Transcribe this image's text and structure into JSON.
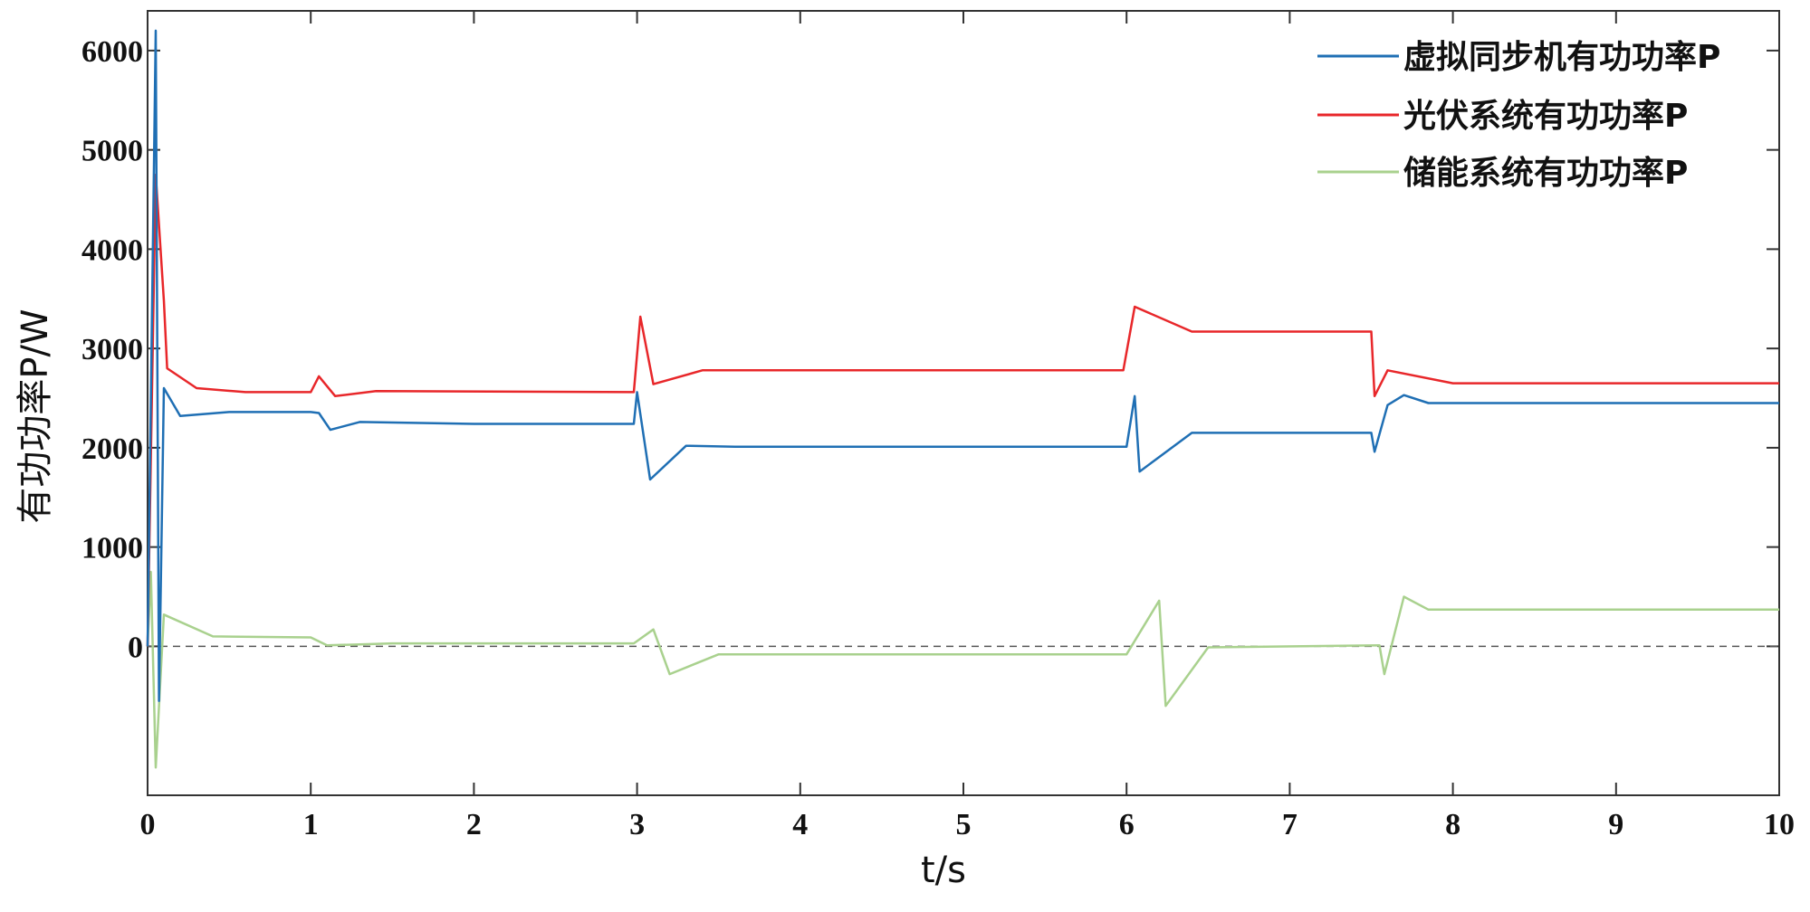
{
  "chart_data": {
    "type": "line",
    "xlabel": "t/s",
    "ylabel": "有功功率P/W",
    "xlim": [
      0,
      10
    ],
    "ylim": [
      -1500,
      6400
    ],
    "x_ticks": [
      "0",
      "1",
      "2",
      "3",
      "4",
      "5",
      "6",
      "7",
      "8",
      "9",
      "10"
    ],
    "y_ticks": [
      "0",
      "1000",
      "2000",
      "3000",
      "4000",
      "5000",
      "6000"
    ],
    "x_tick_values": [
      0,
      1,
      2,
      3,
      4,
      5,
      6,
      7,
      8,
      9,
      10
    ],
    "y_tick_values": [
      0,
      1000,
      2000,
      3000,
      4000,
      5000,
      6000
    ],
    "grid": false,
    "legend_position": "top-right",
    "zero_reference_line": 0,
    "series": [
      {
        "name": "虚拟同步机有功功率P",
        "color": "#1f6fb4",
        "points": [
          [
            0,
            0
          ],
          [
            0.05,
            6200
          ],
          [
            0.07,
            -550
          ],
          [
            0.1,
            2600
          ],
          [
            0.2,
            2320
          ],
          [
            0.5,
            2360
          ],
          [
            1.0,
            2360
          ],
          [
            1.05,
            2350
          ],
          [
            1.12,
            2180
          ],
          [
            1.3,
            2260
          ],
          [
            2.0,
            2240
          ],
          [
            2.98,
            2240
          ],
          [
            3.0,
            2560
          ],
          [
            3.08,
            1680
          ],
          [
            3.3,
            2020
          ],
          [
            3.6,
            2010
          ],
          [
            6.0,
            2010
          ],
          [
            6.05,
            2520
          ],
          [
            6.08,
            1760
          ],
          [
            6.4,
            2150
          ],
          [
            7.5,
            2150
          ],
          [
            7.52,
            1960
          ],
          [
            7.6,
            2430
          ],
          [
            7.7,
            2530
          ],
          [
            7.85,
            2450
          ],
          [
            10,
            2450
          ]
        ]
      },
      {
        "name": "光伏系统有功功率P",
        "color": "#e8272a",
        "points": [
          [
            0,
            0
          ],
          [
            0.05,
            4750
          ],
          [
            0.1,
            3480
          ],
          [
            0.12,
            2800
          ],
          [
            0.3,
            2600
          ],
          [
            0.6,
            2560
          ],
          [
            1.0,
            2560
          ],
          [
            1.05,
            2720
          ],
          [
            1.15,
            2520
          ],
          [
            1.4,
            2570
          ],
          [
            2.98,
            2560
          ],
          [
            3.02,
            3320
          ],
          [
            3.1,
            2640
          ],
          [
            3.4,
            2780
          ],
          [
            5.98,
            2780
          ],
          [
            6.05,
            3420
          ],
          [
            6.4,
            3170
          ],
          [
            7.5,
            3170
          ],
          [
            7.52,
            2520
          ],
          [
            7.6,
            2780
          ],
          [
            8.0,
            2650
          ],
          [
            10,
            2650
          ]
        ]
      },
      {
        "name": "储能系统有功功率P",
        "color": "#a9d18e",
        "points": [
          [
            0,
            0
          ],
          [
            0.02,
            750
          ],
          [
            0.05,
            -1220
          ],
          [
            0.1,
            320
          ],
          [
            0.4,
            100
          ],
          [
            1.0,
            90
          ],
          [
            1.1,
            10
          ],
          [
            1.5,
            30
          ],
          [
            2.98,
            30
          ],
          [
            3.1,
            170
          ],
          [
            3.2,
            -280
          ],
          [
            3.5,
            -80
          ],
          [
            6.0,
            -80
          ],
          [
            6.2,
            460
          ],
          [
            6.24,
            -600
          ],
          [
            6.5,
            -10
          ],
          [
            7.55,
            10
          ],
          [
            7.58,
            -280
          ],
          [
            7.7,
            500
          ],
          [
            7.85,
            370
          ],
          [
            10,
            370
          ]
        ]
      }
    ]
  }
}
